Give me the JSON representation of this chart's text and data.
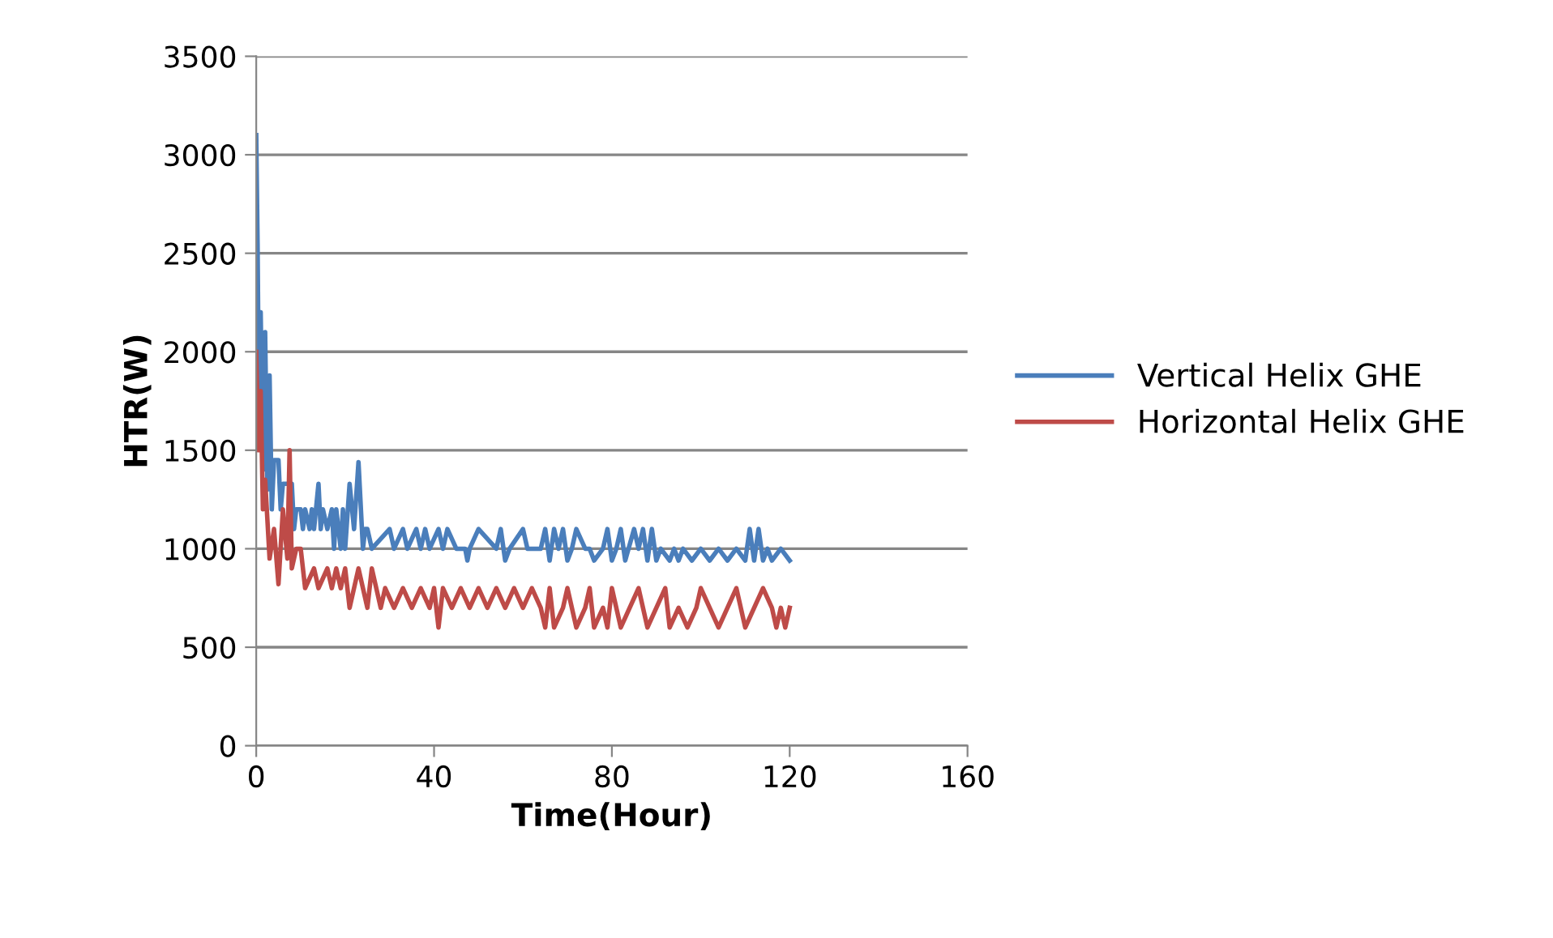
{
  "chart_data": {
    "type": "line",
    "xlabel": "Time(Hour)",
    "ylabel": "HTR(W)",
    "xlim": [
      0,
      160
    ],
    "xticks": [
      0,
      40,
      80,
      120,
      160
    ],
    "ylim": [
      0,
      3500
    ],
    "yticks": [
      0,
      500,
      1000,
      1500,
      2000,
      2500,
      3000,
      3500
    ],
    "grid": "y",
    "legend": "right",
    "marker": "none",
    "line_style": "solid",
    "series": [
      {
        "name": "Vertical Helix GHE",
        "color": "#4a7ebb",
        "x": [
          0,
          0.3,
          0.6,
          1,
          1.5,
          2,
          2.5,
          3,
          3.5,
          4,
          5,
          5.5,
          6,
          8,
          8.5,
          9,
          10,
          10.5,
          11,
          12,
          12.5,
          13,
          14,
          14.5,
          15,
          16,
          17,
          17.5,
          18,
          19,
          19.5,
          20,
          21,
          22,
          23,
          24,
          24.5,
          25,
          26,
          30,
          31,
          33,
          34,
          36,
          37,
          38,
          39,
          41,
          42,
          43,
          45,
          47,
          47.5,
          48,
          50,
          54,
          55,
          56,
          57,
          60,
          61,
          64,
          65,
          66,
          67,
          68,
          69,
          70,
          71,
          72,
          74,
          75,
          76,
          78,
          79,
          80,
          81,
          82,
          83,
          85,
          86,
          87,
          88,
          89,
          90,
          91,
          93,
          94,
          95,
          96,
          98,
          100,
          102,
          104,
          106,
          108,
          110,
          111,
          112,
          113,
          114,
          115,
          116,
          118,
          120
        ],
        "values": [
          3100,
          2550,
          1700,
          2200,
          1400,
          2100,
          1300,
          1880,
          1200,
          1450,
          1450,
          1200,
          1330,
          1330,
          1100,
          1200,
          1200,
          1100,
          1200,
          1100,
          1200,
          1100,
          1330,
          1100,
          1200,
          1100,
          1200,
          1000,
          1200,
          1000,
          1200,
          1000,
          1330,
          1100,
          1440,
          1000,
          1100,
          1100,
          1000,
          1100,
          1000,
          1100,
          1000,
          1100,
          1000,
          1100,
          1000,
          1100,
          1000,
          1100,
          1000,
          1000,
          940,
          1000,
          1100,
          1000,
          1100,
          940,
          1000,
          1100,
          1000,
          1000,
          1100,
          940,
          1100,
          1000,
          1100,
          940,
          1000,
          1100,
          1000,
          1000,
          940,
          1000,
          1100,
          940,
          1000,
          1100,
          940,
          1100,
          1000,
          1100,
          940,
          1100,
          940,
          1000,
          940,
          1000,
          940,
          1000,
          940,
          1000,
          940,
          1000,
          940,
          1000,
          940,
          1100,
          940,
          1100,
          940,
          1000,
          940,
          1000,
          940
        ]
      },
      {
        "name": "Horizontal Helix GHE",
        "color": "#be4b48",
        "x": [
          0,
          0.5,
          1,
          1.5,
          2,
          3,
          4,
          5,
          6,
          7,
          7.5,
          8,
          9,
          10,
          11,
          13,
          14,
          16,
          17,
          18,
          19,
          20,
          21,
          23,
          24,
          25,
          26,
          28,
          29,
          31,
          33,
          35,
          37,
          39,
          40,
          41,
          42,
          44,
          46,
          48,
          50,
          52,
          54,
          56,
          58,
          60,
          62,
          64,
          65,
          66,
          67,
          69,
          70,
          72,
          74,
          75,
          76,
          78,
          79,
          80,
          82,
          84,
          86,
          88,
          90,
          92,
          93,
          95,
          97,
          99,
          100,
          102,
          104,
          106,
          108,
          110,
          112,
          114,
          116,
          117,
          118,
          119,
          120
        ],
        "values": [
          2000,
          1500,
          1800,
          1200,
          1350,
          950,
          1100,
          820,
          1200,
          950,
          1500,
          900,
          1000,
          1000,
          800,
          900,
          800,
          900,
          800,
          900,
          800,
          900,
          700,
          900,
          800,
          700,
          900,
          700,
          800,
          700,
          800,
          700,
          800,
          700,
          800,
          600,
          800,
          700,
          800,
          700,
          800,
          700,
          800,
          700,
          800,
          700,
          800,
          700,
          600,
          800,
          600,
          700,
          800,
          600,
          700,
          800,
          600,
          700,
          600,
          800,
          600,
          700,
          800,
          600,
          700,
          800,
          600,
          700,
          600,
          700,
          800,
          700,
          600,
          700,
          800,
          600,
          700,
          800,
          700,
          600,
          700,
          600,
          700
        ]
      }
    ]
  }
}
